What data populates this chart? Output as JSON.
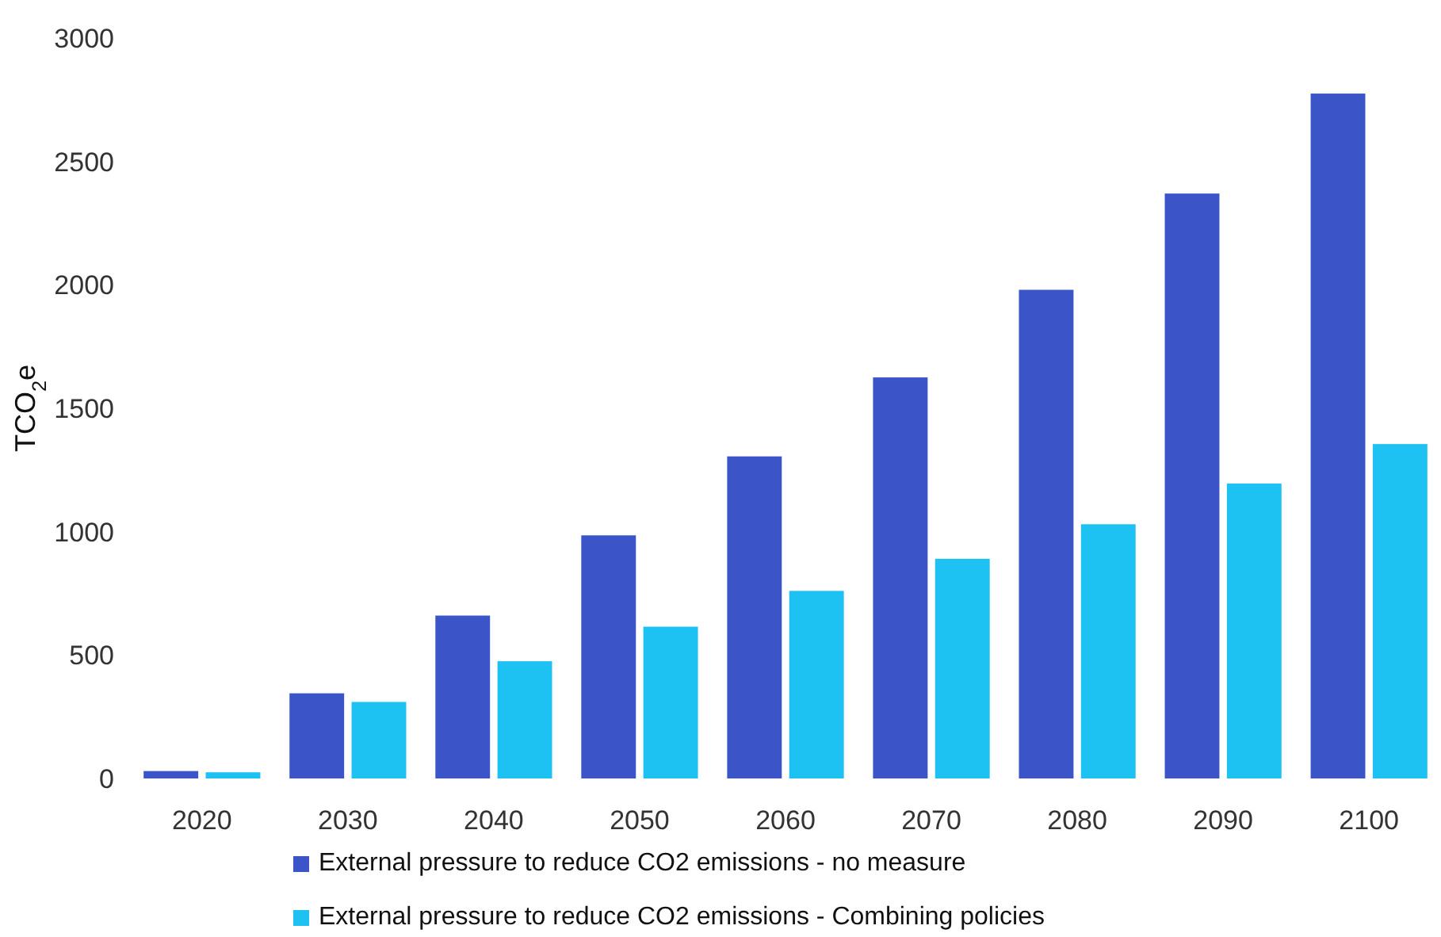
{
  "chart_data": {
    "type": "bar",
    "ylabel": "TCO$_{2}$e",
    "categories": [
      "2020",
      "2030",
      "2040",
      "2050",
      "2060",
      "2070",
      "2080",
      "2090",
      "2100"
    ],
    "series": [
      {
        "name": "External pressure to reduce CO2 emissions - no measure",
        "color": "#3b55c9",
        "values": [
          30,
          345,
          660,
          985,
          1305,
          1625,
          1980,
          2370,
          2775
        ]
      },
      {
        "name": "External pressure to reduce CO2 emissions - Combining policies",
        "color": "#1ec2f2",
        "values": [
          25,
          310,
          475,
          615,
          760,
          890,
          1030,
          1195,
          1355
        ]
      }
    ],
    "ylim": [
      0,
      3000
    ],
    "yticks": [
      0,
      500,
      1000,
      1500,
      2000,
      2500,
      3000
    ],
    "grid": false,
    "legend": "bottom"
  }
}
